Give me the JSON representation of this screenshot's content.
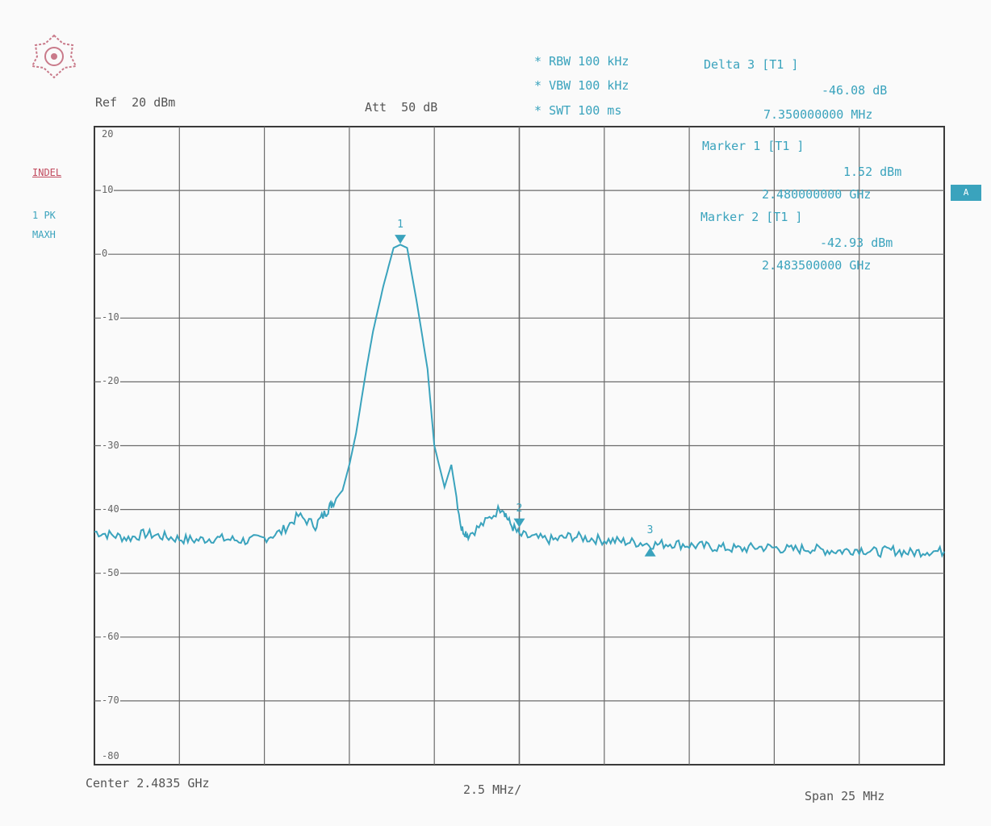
{
  "header": {
    "ref": "Ref  20 dBm",
    "att": "Att  50 dB",
    "rbw": "RBW 100 kHz",
    "vbw": "VBW 100 kHz",
    "swt": "SWT 100 ms",
    "left_labels": [
      "INDEL",
      "1 PK",
      "MAXH"
    ],
    "side_badge": "A"
  },
  "markers": {
    "delta3": {
      "title": "Delta 3 [T1 ]",
      "level": "-46.08 dB",
      "freq": "7.350000000 MHz"
    },
    "marker1": {
      "title": "Marker 1 [T1 ]",
      "level": "1.52 dBm",
      "freq": "2.480000000 GHz"
    },
    "marker2": {
      "title": "Marker 2 [T1 ]",
      "level": "-42.93 dBm",
      "freq": "2.483500000 GHz"
    }
  },
  "footer": {
    "center": "Center 2.4835 GHz",
    "div": "2.5 MHz/",
    "span": "Span 25 MHz"
  },
  "colors": {
    "trace": "#3aa3bd",
    "grid": "#6b6b6b",
    "text": "#555555"
  },
  "chart_data": {
    "type": "line",
    "xlabel": "",
    "ylabel": "",
    "xlim": [
      2.471,
      2.496
    ],
    "ylim": [
      -80,
      20
    ],
    "yticks": [
      20,
      10,
      0,
      -10,
      -20,
      -30,
      -40,
      -50,
      -60,
      -70,
      -80
    ],
    "x_unit": "GHz",
    "y_unit": "dBm",
    "grid": true,
    "series": [
      {
        "name": "",
        "x": [
          2.471,
          2.4715,
          2.472,
          2.4725,
          2.473,
          2.4735,
          2.474,
          2.4745,
          2.475,
          2.4755,
          2.476,
          2.4765,
          2.477,
          2.4775,
          2.4778,
          2.478,
          2.4783,
          2.4785,
          2.4787,
          2.479,
          2.4792,
          2.4795,
          2.4798,
          2.48,
          2.4802,
          2.4805,
          2.4808,
          2.481,
          2.4813,
          2.4815,
          2.4818,
          2.482,
          2.4825,
          2.483,
          2.4832,
          2.4835,
          2.484,
          2.4845,
          2.485,
          2.4855,
          2.486,
          2.4865,
          2.487,
          2.4875,
          2.488,
          2.4885,
          2.489,
          2.4895,
          2.49,
          2.4905,
          2.491,
          2.4915,
          2.492,
          2.4925,
          2.493,
          2.4935,
          2.494,
          2.4945,
          2.495,
          2.4955,
          2.496
        ],
        "y": [
          -43.5,
          -44.0,
          -44.5,
          -43.8,
          -44.2,
          -44.6,
          -44.8,
          -44.5,
          -44.7,
          -44.9,
          -44.5,
          -43.5,
          -41.0,
          -42.5,
          -40.5,
          -39.0,
          -37.0,
          -33.0,
          -28.0,
          -18.0,
          -12.0,
          -5.0,
          1.0,
          1.5,
          1.0,
          -8.0,
          -18.0,
          -30.0,
          -36.5,
          -33.0,
          -43.0,
          -44.0,
          -42.0,
          -39.5,
          -42.0,
          -44.0,
          -44.5,
          -44.8,
          -44.2,
          -44.5,
          -44.8,
          -45.0,
          -45.2,
          -45.5,
          -45.3,
          -45.6,
          -45.8,
          -46.0,
          -46.2,
          -45.9,
          -46.0,
          -46.3,
          -46.1,
          -46.4,
          -46.5,
          -46.2,
          -46.7,
          -46.4,
          -46.8,
          -46.5,
          -46.6
        ]
      }
    ],
    "point_markers": [
      {
        "label": "1",
        "x": 2.48,
        "y": 1.52,
        "symbol": "down"
      },
      {
        "label": "2",
        "x": 2.4835,
        "y": -42.93,
        "symbol": "down"
      },
      {
        "label": "3",
        "x": 2.48735,
        "y": -46.08,
        "symbol": "up"
      }
    ]
  }
}
